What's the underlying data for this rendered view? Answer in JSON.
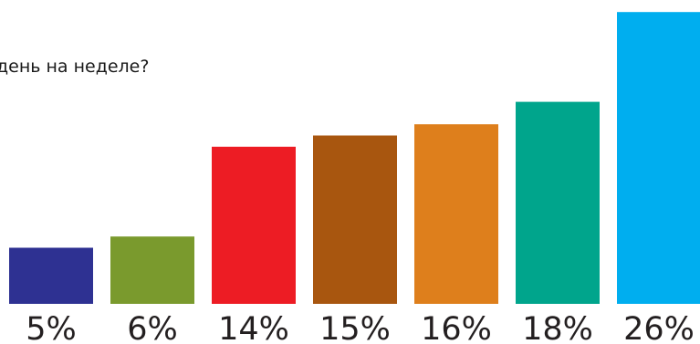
{
  "chart_data": {
    "type": "bar",
    "title": "день на неделе?",
    "xlabel": "",
    "ylabel": "",
    "grid": false,
    "values": [
      5,
      6,
      14,
      15,
      16,
      18,
      26
    ],
    "value_labels": [
      "5%",
      "6%",
      "14%",
      "15%",
      "16%",
      "18%",
      "26%"
    ],
    "colors": [
      "#2e3192",
      "#7a9a2d",
      "#ed1c24",
      "#a8560f",
      "#de7f1c",
      "#00a58c",
      "#00aeef"
    ]
  }
}
